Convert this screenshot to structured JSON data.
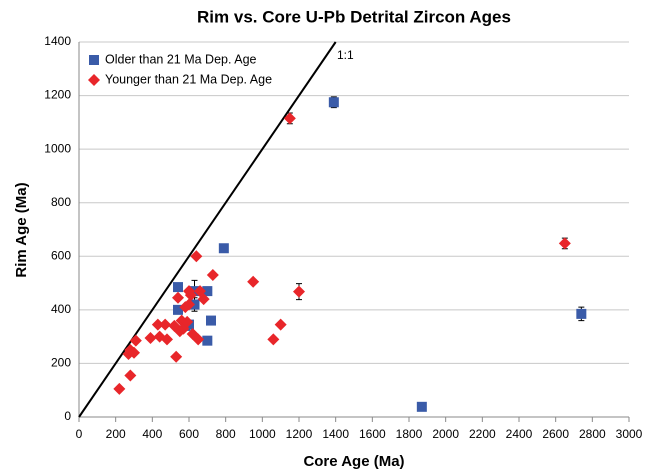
{
  "chart_data": {
    "type": "scatter",
    "title": "Rim vs. Core U-Pb Detrital Zircon Ages",
    "x_label": "Core Age (Ma)",
    "y_label": "Rim Age (Ma)",
    "annotation": "1:1",
    "xlim": [
      0,
      3000
    ],
    "ylim": [
      0,
      1400
    ],
    "xticks": [
      0,
      200,
      400,
      600,
      800,
      1000,
      1200,
      1400,
      1600,
      1800,
      2000,
      2200,
      2400,
      2600,
      2800,
      3000
    ],
    "yticks": [
      0,
      200,
      400,
      600,
      800,
      1000,
      1200,
      1400
    ],
    "grid": true,
    "legend": "upper left",
    "series": [
      {
        "name": "Older than 21 Ma Dep. Age",
        "color": "#3a5ba8",
        "marker": "square",
        "x": [
          1390,
          2740,
          1870,
          790,
          540,
          700,
          630,
          630,
          720,
          540,
          580,
          700,
          600
        ],
        "values": [
          1175,
          385,
          38,
          630,
          485,
          470,
          470,
          420,
          360,
          400,
          340,
          285,
          345
        ],
        "errors": [
          20,
          25,
          null,
          null,
          null,
          null,
          40,
          25,
          null,
          null,
          null,
          null,
          null
        ]
      },
      {
        "name": "Younger than 21 Ma Dep. Age",
        "color": "#e8262a",
        "marker": "diamond",
        "x": [
          1150,
          2650,
          1200,
          950,
          730,
          640,
          1100,
          1060,
          220,
          280,
          270,
          280,
          300,
          310,
          390,
          430,
          440,
          470,
          480,
          520,
          530,
          540,
          550,
          560,
          580,
          600,
          610,
          620,
          650,
          660,
          680,
          600,
          570,
          590
        ],
        "values": [
          1115,
          648,
          468,
          505,
          530,
          600,
          345,
          290,
          105,
          155,
          235,
          250,
          240,
          285,
          295,
          345,
          300,
          345,
          290,
          340,
          225,
          445,
          320,
          360,
          410,
          470,
          455,
          310,
          290,
          470,
          440,
          420,
          330,
          355
        ],
        "errors": [
          20,
          20,
          30,
          null,
          null,
          null,
          null,
          null,
          null,
          null,
          null,
          null,
          null,
          null,
          null,
          null,
          null,
          null,
          null,
          null,
          null,
          null,
          null,
          null,
          null,
          null,
          null,
          null,
          null,
          null,
          null,
          null,
          null,
          null
        ]
      }
    ]
  }
}
